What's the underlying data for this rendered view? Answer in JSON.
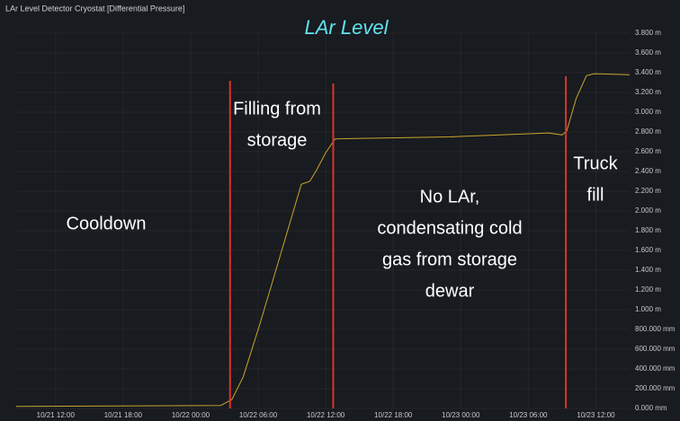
{
  "chart_data": {
    "type": "line",
    "panel_title": "LAr Level Detector Cryostat [Differential Pressure]",
    "title": "LAr Level",
    "xlim": [
      "10/21 08:30",
      "10/23 15:00"
    ],
    "xticks": [
      "10/21 12:00",
      "10/21 18:00",
      "10/22 00:00",
      "10/22 06:00",
      "10/22 12:00",
      "10/22 18:00",
      "10/23 00:00",
      "10/23 06:00",
      "10/23 12:00"
    ],
    "ylim": [
      0,
      3.8
    ],
    "yticks": [
      {
        "value": 0,
        "label": "0.000 mm"
      },
      {
        "value": 0.2,
        "label": "200.000 mm"
      },
      {
        "value": 0.4,
        "label": "400.000 mm"
      },
      {
        "value": 0.6,
        "label": "600.000 mm"
      },
      {
        "value": 0.8,
        "label": "800.000 mm"
      },
      {
        "value": 1.0,
        "label": "1.000 m"
      },
      {
        "value": 1.2,
        "label": "1.200 m"
      },
      {
        "value": 1.4,
        "label": "1.400 m"
      },
      {
        "value": 1.6,
        "label": "1.600 m"
      },
      {
        "value": 1.8,
        "label": "1.800 m"
      },
      {
        "value": 2.0,
        "label": "2.000 m"
      },
      {
        "value": 2.2,
        "label": "2.200 m"
      },
      {
        "value": 2.4,
        "label": "2.400 m"
      },
      {
        "value": 2.6,
        "label": "2.600 m"
      },
      {
        "value": 2.8,
        "label": "2.800 m"
      },
      {
        "value": 3.0,
        "label": "3.000 m"
      },
      {
        "value": 3.2,
        "label": "3.200 m"
      },
      {
        "value": 3.4,
        "label": "3.400 m"
      },
      {
        "value": 3.6,
        "label": "3.600 m"
      },
      {
        "value": 3.8,
        "label": "3.800 m"
      }
    ],
    "grid": true,
    "x": [
      "10/21 08:30",
      "10/22 02:40",
      "10/22 03:40",
      "10/22 04:40",
      "10/22 06:10",
      "10/22 07:50",
      "10/22 09:00",
      "10/22 09:50",
      "10/22 10:35",
      "10/22 11:10",
      "10/22 12:00",
      "10/22 12:50",
      "10/22 23:00",
      "10/23 07:50",
      "10/23 09:00",
      "10/23 09:25",
      "10/23 10:15",
      "10/23 11:10",
      "10/23 11:50",
      "10/23 15:00"
    ],
    "series": [
      {
        "color": "#c9a52c",
        "values": [
          0.02,
          0.03,
          0.09,
          0.32,
          0.86,
          1.5,
          1.95,
          2.27,
          2.3,
          2.41,
          2.59,
          2.73,
          2.75,
          2.79,
          2.77,
          2.81,
          3.14,
          3.37,
          3.39,
          3.38
        ]
      }
    ],
    "event_color": "#d9342b",
    "events": [
      "10/22 03:30",
      "10/22 12:40",
      "10/23 09:20"
    ],
    "annotations": [
      {
        "lines": [
          "Cooldown"
        ]
      },
      {
        "lines": [
          "Filling from",
          "storage"
        ]
      },
      {
        "lines": [
          "No LAr,",
          "condensating cold",
          "gas from storage",
          "dewar"
        ]
      },
      {
        "lines": [
          "Truck",
          "fill"
        ]
      }
    ]
  }
}
